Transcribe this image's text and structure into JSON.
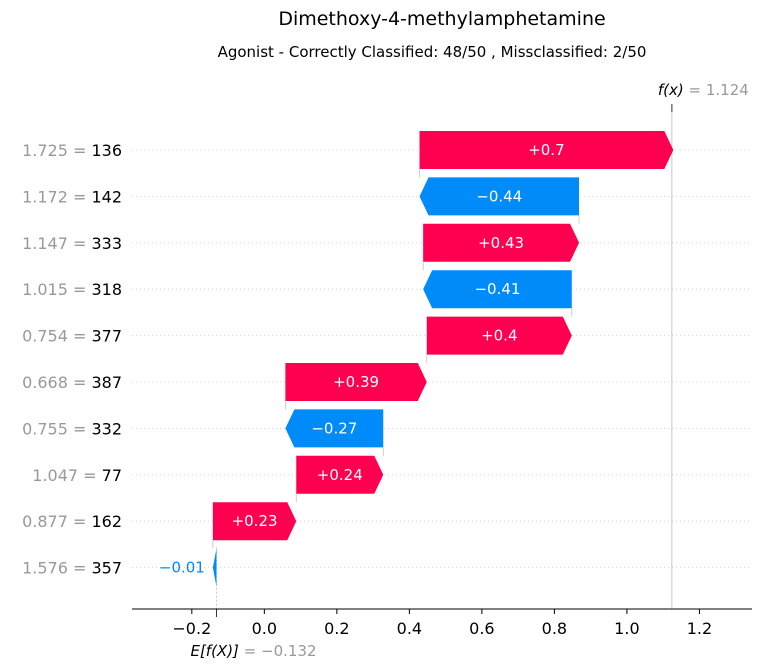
{
  "chart_data": {
    "type": "waterfall",
    "title": "Dimethoxy-4-methylamphetamine",
    "subtitle": "Agonist - Correctly Classified: 48/50 , Missclassified: 2/50",
    "base_value": -0.132,
    "base_label_key": "E[f(X)]",
    "base_label_value": "= −0.132",
    "output_value": 1.124,
    "output_label_key": "f(x)",
    "output_label_value": "= 1.124",
    "xlim": [
      -0.365,
      1.345
    ],
    "xticks": [
      -0.2,
      0.0,
      0.2,
      0.4,
      0.6,
      0.8,
      1.0,
      1.2
    ],
    "xtick_labels": [
      "−0.2",
      "0.0",
      "0.2",
      "0.4",
      "0.6",
      "0.8",
      "1.0",
      "1.2"
    ],
    "colors": {
      "positive": "#ff0051",
      "negative": "#008bfb",
      "muted": "#999999"
    },
    "features": [
      {
        "value": "1.725",
        "feature": "136",
        "contribution": 0.7,
        "label": "+0.7"
      },
      {
        "value": "1.172",
        "feature": "142",
        "contribution": -0.44,
        "label": "−0.44"
      },
      {
        "value": "1.147",
        "feature": "333",
        "contribution": 0.43,
        "label": "+0.43"
      },
      {
        "value": "1.015",
        "feature": "318",
        "contribution": -0.41,
        "label": "−0.41"
      },
      {
        "value": "0.754",
        "feature": "377",
        "contribution": 0.4,
        "label": "+0.4"
      },
      {
        "value": "0.668",
        "feature": "387",
        "contribution": 0.39,
        "label": "+0.39"
      },
      {
        "value": "0.755",
        "feature": "332",
        "contribution": -0.27,
        "label": "−0.27"
      },
      {
        "value": "1.047",
        "feature": "77",
        "contribution": 0.24,
        "label": "+0.24"
      },
      {
        "value": "0.877",
        "feature": "162",
        "contribution": 0.23,
        "label": "+0.23"
      },
      {
        "value": "1.576",
        "feature": "357",
        "contribution": -0.01,
        "label": "−0.01"
      }
    ]
  }
}
